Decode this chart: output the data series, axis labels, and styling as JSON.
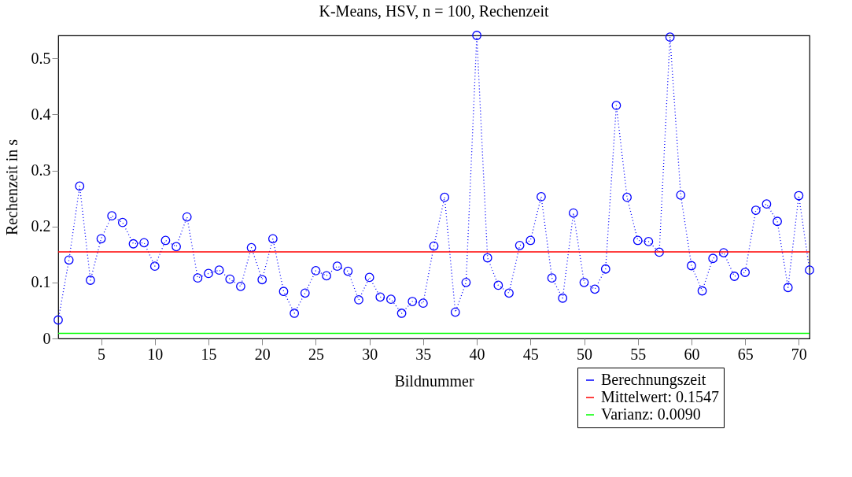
{
  "chart_data": {
    "type": "line",
    "title": "K-Means, HSV, n = 100, Rechenzeit",
    "xlabel": "Bildnummer",
    "ylabel": "Rechenzeit in s",
    "x": [
      1,
      2,
      3,
      4,
      5,
      6,
      7,
      8,
      9,
      10,
      11,
      12,
      13,
      14,
      15,
      16,
      17,
      18,
      19,
      20,
      21,
      22,
      23,
      24,
      25,
      26,
      27,
      28,
      29,
      30,
      31,
      32,
      33,
      34,
      35,
      36,
      37,
      38,
      39,
      40,
      41,
      42,
      43,
      44,
      45,
      46,
      47,
      48,
      49,
      50,
      51,
      52,
      53,
      54,
      55,
      56,
      57,
      58,
      59,
      60,
      61,
      62,
      63,
      64,
      65,
      66,
      67,
      68,
      69,
      70,
      71
    ],
    "series": [
      {
        "name": "Berechnungszeit",
        "color": "#0000ff",
        "values": [
          0.033,
          0.14,
          0.272,
          0.104,
          0.178,
          0.219,
          0.207,
          0.169,
          0.171,
          0.129,
          0.175,
          0.164,
          0.217,
          0.108,
          0.116,
          0.122,
          0.106,
          0.093,
          0.162,
          0.105,
          0.178,
          0.084,
          0.045,
          0.081,
          0.121,
          0.112,
          0.129,
          0.12,
          0.069,
          0.109,
          0.074,
          0.07,
          0.045,
          0.066,
          0.063,
          0.165,
          0.252,
          0.047,
          0.1,
          0.541,
          0.144,
          0.095,
          0.081,
          0.166,
          0.175,
          0.253,
          0.108,
          0.072,
          0.224,
          0.1,
          0.088,
          0.124,
          0.416,
          0.252,
          0.175,
          0.173,
          0.154,
          0.538,
          0.256,
          0.13,
          0.085,
          0.143,
          0.153,
          0.111,
          0.118,
          0.229,
          0.24,
          0.209,
          0.091,
          0.255,
          0.122
        ]
      }
    ],
    "ref_lines": [
      {
        "axis": "y",
        "value": 0.1547,
        "label": "Mittelwert: 0.1547",
        "color": "#ff0000"
      },
      {
        "axis": "y",
        "value": 0.009,
        "label": "Varianz: 0.0090",
        "color": "#00ff00"
      }
    ],
    "xlim": [
      1,
      71
    ],
    "xticks": [
      5,
      10,
      15,
      20,
      25,
      30,
      35,
      40,
      45,
      50,
      55,
      60,
      65,
      70
    ],
    "ylim": [
      0,
      0.541
    ],
    "yticks": [
      0,
      0.1,
      0.2,
      0.3,
      0.4,
      0.5
    ],
    "marker": "circle",
    "line_style": "dotted",
    "grid": false,
    "legend": "bottom right"
  }
}
